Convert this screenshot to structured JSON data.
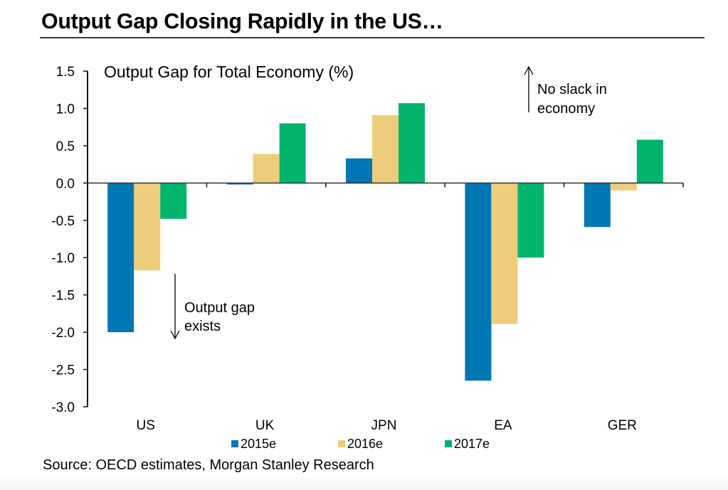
{
  "header": {
    "title": "Output Gap Closing Rapidly in the US…"
  },
  "chart_data": {
    "type": "bar",
    "title": "Output Gap for Total Economy (%)",
    "xlabel": "",
    "ylabel": "",
    "categories": [
      "US",
      "UK",
      "JPN",
      "EA",
      "GER"
    ],
    "series": [
      {
        "name": "2015e",
        "color": "#0077b5",
        "values": [
          -2.0,
          -0.02,
          0.33,
          -2.65,
          -0.59
        ]
      },
      {
        "name": "2016e",
        "color": "#edcd7c",
        "values": [
          -1.17,
          0.39,
          0.91,
          -1.89,
          -0.1
        ]
      },
      {
        "name": "2017e",
        "color": "#00b46b",
        "values": [
          -0.48,
          0.8,
          1.07,
          -1.0,
          0.58
        ]
      }
    ],
    "ylim": [
      -3.0,
      1.5
    ],
    "yticks": [
      1.5,
      1.0,
      0.5,
      0.0,
      -0.5,
      -1.0,
      -1.5,
      -2.0,
      -2.5,
      -3.0
    ],
    "ytick_labels": [
      "1.5",
      "1.0",
      "0.5",
      "0.0",
      "-0.5",
      "-1.0",
      "-1.5",
      "-2.0",
      "-2.5",
      "-3.0"
    ],
    "grid": false,
    "legend_position": "bottom",
    "annotations": [
      {
        "id": "no-slack",
        "lines": [
          "No slack in",
          "economy"
        ],
        "arrow": "up"
      },
      {
        "id": "output-gap",
        "lines": [
          "Output gap",
          "exists"
        ],
        "arrow": "down"
      }
    ]
  },
  "footer": {
    "source": "Source: OECD estimates, Morgan Stanley Research"
  }
}
